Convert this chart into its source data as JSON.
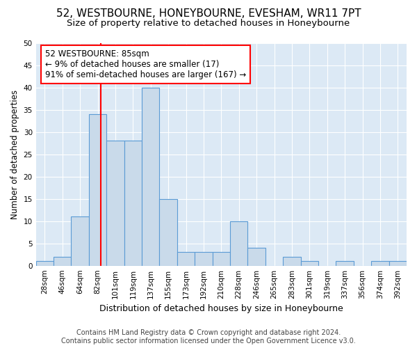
{
  "title1": "52, WESTBOURNE, HONEYBOURNE, EVESHAM, WR11 7PT",
  "title2": "Size of property relative to detached houses in Honeybourne",
  "xlabel": "Distribution of detached houses by size in Honeybourne",
  "ylabel": "Number of detached properties",
  "bin_labels": [
    "28sqm",
    "46sqm",
    "64sqm",
    "82sqm",
    "101sqm",
    "119sqm",
    "137sqm",
    "155sqm",
    "173sqm",
    "192sqm",
    "210sqm",
    "228sqm",
    "246sqm",
    "265sqm",
    "283sqm",
    "301sqm",
    "319sqm",
    "337sqm",
    "356sqm",
    "374sqm",
    "392sqm"
  ],
  "bin_edges": [
    19,
    37,
    55,
    73,
    91,
    109,
    127,
    145,
    163,
    181,
    199,
    217,
    235,
    253,
    271,
    289,
    307,
    325,
    343,
    361,
    379,
    397
  ],
  "bar_heights": [
    1,
    2,
    11,
    34,
    28,
    28,
    40,
    15,
    3,
    3,
    3,
    10,
    4,
    0,
    2,
    1,
    0,
    1,
    0,
    1,
    1
  ],
  "bar_color": "#c9daea",
  "bar_edgecolor": "#5b9bd5",
  "vline_x": 85,
  "vline_color": "red",
  "annotation_line1": "52 WESTBOURNE: 85sqm",
  "annotation_line2": "← 9% of detached houses are smaller (17)",
  "annotation_line3": "91% of semi-detached houses are larger (167) →",
  "annotation_box_color": "white",
  "annotation_box_edgecolor": "red",
  "ylim": [
    0,
    50
  ],
  "yticks": [
    0,
    5,
    10,
    15,
    20,
    25,
    30,
    35,
    40,
    45,
    50
  ],
  "background_color": "#dce9f5",
  "footer_text": "Contains HM Land Registry data © Crown copyright and database right 2024.\nContains public sector information licensed under the Open Government Licence v3.0.",
  "grid_color": "white",
  "title1_fontsize": 11,
  "title2_fontsize": 9.5,
  "xlabel_fontsize": 9,
  "ylabel_fontsize": 8.5,
  "tick_fontsize": 7.5,
  "footer_fontsize": 7,
  "annot_fontsize": 8.5
}
